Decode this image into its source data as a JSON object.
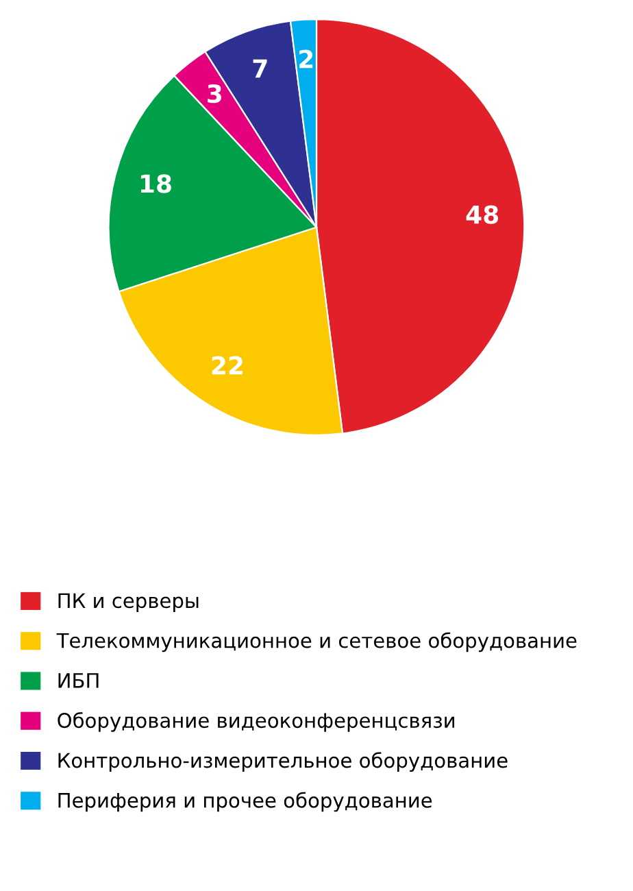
{
  "chart_data": {
    "type": "pie",
    "categories": [
      "ПК и серверы",
      "Телекоммуникационное и сетевое оборудование",
      "ИБП",
      "Оборудование видеоконференцсвязи",
      "Контрольно-измерительное оборудование",
      "Периферия и прочее оборудование"
    ],
    "values": [
      48,
      22,
      18,
      3,
      7,
      2
    ],
    "colors": [
      "#e2202a",
      "#fcc900",
      "#00a04a",
      "#e5007e",
      "#2e3192",
      "#00aeef"
    ],
    "data_labels": true,
    "legend": "bottom"
  }
}
